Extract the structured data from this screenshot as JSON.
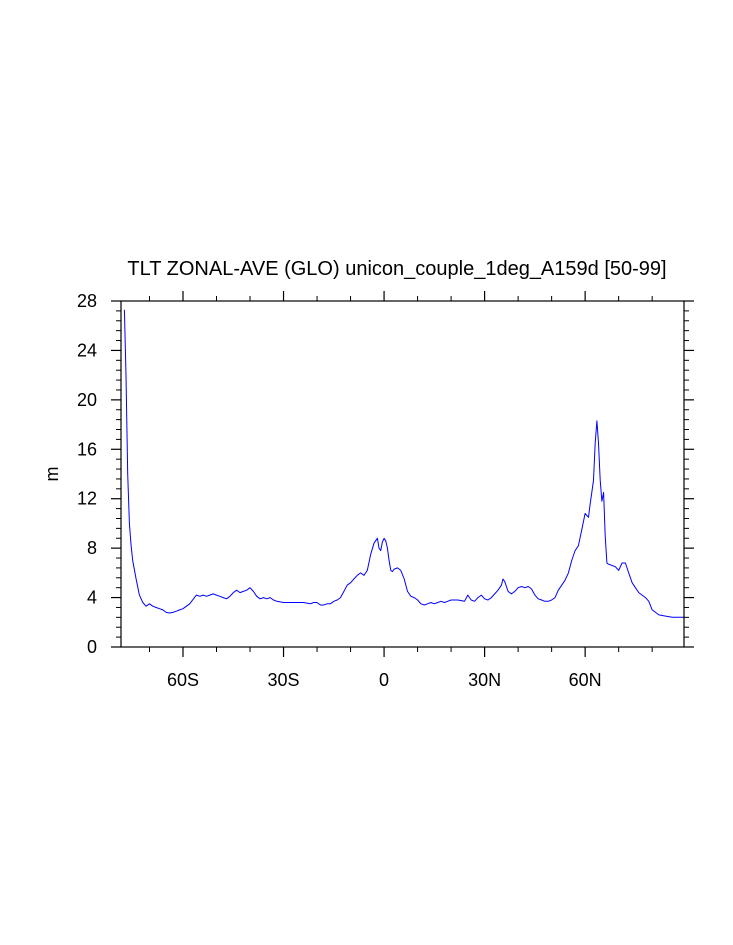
{
  "chart_data": {
    "type": "line",
    "title": "TLT ZONAL-AVE (GLO) unicon_couple_1deg_A159d [50-99]",
    "xlabel": "",
    "ylabel": "m",
    "xlim": [
      -78.5,
      89.5
    ],
    "ylim": [
      0,
      28
    ],
    "grid": false,
    "x_ticks": [
      {
        "value": -60,
        "label": "60S"
      },
      {
        "value": -30,
        "label": "30S"
      },
      {
        "value": 0,
        "label": "0"
      },
      {
        "value": 30,
        "label": "30N"
      },
      {
        "value": 60,
        "label": "60N"
      }
    ],
    "y_ticks": [
      {
        "value": 0,
        "label": "0"
      },
      {
        "value": 4,
        "label": "4"
      },
      {
        "value": 8,
        "label": "8"
      },
      {
        "value": 12,
        "label": "12"
      },
      {
        "value": 16,
        "label": "16"
      },
      {
        "value": 20,
        "label": "20"
      },
      {
        "value": 24,
        "label": "24"
      },
      {
        "value": 28,
        "label": "28"
      }
    ],
    "line_color": "#0000ff",
    "series": [
      {
        "x": [
          -77.5,
          -77,
          -76.5,
          -76,
          -75.5,
          -75,
          -74,
          -73,
          -72,
          -71,
          -70,
          -69,
          -68,
          -67,
          -66,
          -65,
          -64,
          -63,
          -62,
          -61,
          -60,
          -58,
          -56,
          -55,
          -54,
          -53,
          -52,
          -51,
          -50,
          -49,
          -48,
          -47,
          -46,
          -45,
          -44,
          -43,
          -42,
          -41,
          -40,
          -39,
          -38,
          -37,
          -36,
          -35,
          -34,
          -33,
          -32,
          -30,
          -28,
          -26,
          -24,
          -22,
          -21,
          -20,
          -19,
          -18,
          -17,
          -16,
          -15,
          -14,
          -13,
          -12,
          -11,
          -10,
          -9,
          -8,
          -7,
          -6,
          -5,
          -4,
          -3,
          -2,
          -1.5,
          -1,
          -0.5,
          0,
          0.5,
          1,
          1.5,
          2,
          2.5,
          3,
          4,
          5,
          6,
          7,
          8,
          9,
          10,
          11,
          12,
          13,
          14,
          15,
          16,
          17,
          18,
          19,
          20,
          22,
          24,
          25,
          26,
          27,
          28,
          29,
          30,
          31,
          32,
          33,
          34,
          35,
          35.5,
          36,
          37,
          38,
          39,
          40,
          41,
          42,
          43,
          44,
          45,
          46,
          47,
          48,
          49,
          50,
          51,
          52,
          53,
          54,
          55,
          56,
          57,
          58,
          59,
          60,
          61,
          61.5,
          62,
          62.5,
          63,
          63.5,
          64,
          64.5,
          65,
          65.5,
          66,
          66.5,
          67,
          68,
          69,
          70,
          71,
          72,
          73,
          74,
          75,
          76,
          77,
          78,
          79,
          80,
          82,
          84,
          86,
          88,
          89.5
        ],
        "y": [
          27.3,
          22,
          14,
          10,
          8.2,
          7,
          5.5,
          4.2,
          3.6,
          3.3,
          3.5,
          3.3,
          3.2,
          3.1,
          3.0,
          2.8,
          2.75,
          2.8,
          2.9,
          3.0,
          3.1,
          3.5,
          4.2,
          4.1,
          4.2,
          4.1,
          4.2,
          4.3,
          4.2,
          4.1,
          4.0,
          3.9,
          4.1,
          4.4,
          4.6,
          4.4,
          4.5,
          4.6,
          4.8,
          4.5,
          4.1,
          3.9,
          4.0,
          3.9,
          4.0,
          3.8,
          3.7,
          3.6,
          3.6,
          3.6,
          3.6,
          3.5,
          3.6,
          3.6,
          3.4,
          3.4,
          3.5,
          3.5,
          3.7,
          3.8,
          4.0,
          4.5,
          5.0,
          5.2,
          5.5,
          5.8,
          6.0,
          5.8,
          6.2,
          7.5,
          8.4,
          8.8,
          8.0,
          7.8,
          8.5,
          8.8,
          8.6,
          8.0,
          7.0,
          6.2,
          6.1,
          6.3,
          6.4,
          6.2,
          5.5,
          4.5,
          4.1,
          4.0,
          3.8,
          3.5,
          3.4,
          3.5,
          3.6,
          3.5,
          3.6,
          3.7,
          3.6,
          3.7,
          3.8,
          3.8,
          3.7,
          4.2,
          3.8,
          3.7,
          4.0,
          4.2,
          3.9,
          3.8,
          4.0,
          4.3,
          4.6,
          5.0,
          5.5,
          5.3,
          4.5,
          4.3,
          4.5,
          4.8,
          4.9,
          4.8,
          4.9,
          4.7,
          4.2,
          3.9,
          3.8,
          3.7,
          3.7,
          3.8,
          4.0,
          4.6,
          5.0,
          5.4,
          6.0,
          7.0,
          7.8,
          8.2,
          9.5,
          10.8,
          10.5,
          11.6,
          12.5,
          13.5,
          16.5,
          18.3,
          16.5,
          13.5,
          11.8,
          12.5,
          9.0,
          6.8,
          6.7,
          6.6,
          6.5,
          6.2,
          6.8,
          6.8,
          6.0,
          5.2,
          4.8,
          4.4,
          4.2,
          4.0,
          3.7,
          3.0,
          2.6,
          2.5,
          2.4,
          2.4,
          2.4
        ]
      }
    ]
  }
}
